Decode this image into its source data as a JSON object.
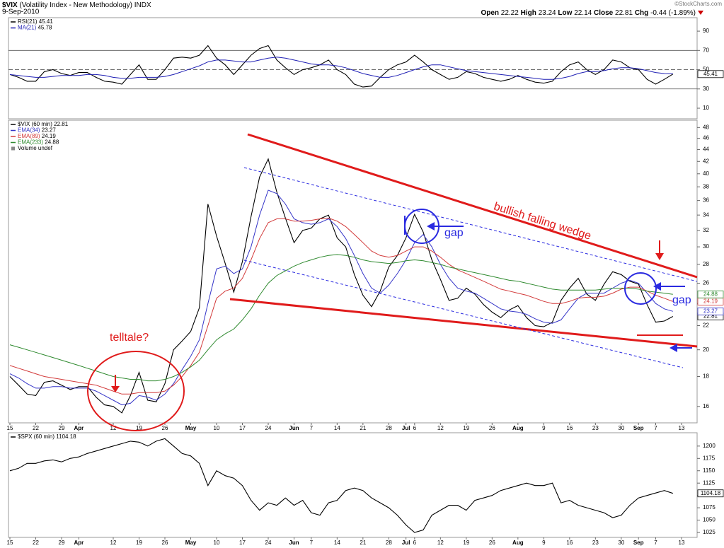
{
  "header": {
    "symbol": "$VIX",
    "name": "(Volatility Index - New Methodology)",
    "exchange": "INDX",
    "date": "9-Sep-2010",
    "quote": [
      {
        "name": "Open",
        "value": 22.22
      },
      {
        "name": "High",
        "value": 23.24
      },
      {
        "name": "Low",
        "value": 22.14
      },
      {
        "name": "Close",
        "value": 22.81
      },
      {
        "name": "Chg",
        "value": -0.44
      }
    ],
    "change_pct": "(-1.89%)",
    "copyright": "©StockCharts.com"
  },
  "chart_data": [
    {
      "type": "line",
      "ylim": [
        -1,
        104
      ],
      "yticks": [
        10,
        30,
        50,
        70,
        90
      ],
      "reference_lines": [
        {
          "value": 30
        },
        {
          "value": 70
        },
        {
          "value": 50,
          "dashed": true
        }
      ],
      "series": [
        {
          "name": "RSI(21)",
          "color": "#000000",
          "last_label": true,
          "values": [
            45,
            42,
            38,
            38,
            48,
            50,
            46,
            44,
            47,
            47,
            42,
            38,
            37,
            35,
            45,
            55,
            40,
            40,
            50,
            62,
            63,
            62,
            65,
            75,
            62,
            55,
            45,
            55,
            65,
            72,
            75,
            60,
            52,
            45,
            50,
            52,
            55,
            60,
            50,
            45,
            35,
            32,
            33,
            42,
            50,
            55,
            58,
            65,
            58,
            50,
            45,
            40,
            42,
            48,
            46,
            42,
            40,
            38,
            40,
            44,
            40,
            37,
            36,
            38,
            48,
            55,
            58,
            50,
            45,
            50,
            60,
            58,
            52,
            50,
            40,
            35,
            40,
            45.41,
            null
          ]
        },
        {
          "name": "MA(21)",
          "color": "#1f1fb4",
          "values": [
            45,
            44,
            43,
            42,
            42,
            43,
            44,
            44,
            44,
            45,
            45,
            44,
            42,
            41,
            41,
            42,
            42,
            42,
            43,
            45,
            48,
            51,
            54,
            58,
            60,
            60,
            59,
            58,
            58,
            60,
            62,
            63,
            62,
            60,
            58,
            56,
            55,
            55,
            54,
            52,
            49,
            46,
            44,
            42,
            42,
            44,
            47,
            50,
            53,
            55,
            55,
            53,
            51,
            49,
            48,
            47,
            46,
            45,
            44,
            43,
            42,
            41,
            40,
            40,
            41,
            43,
            46,
            48,
            48,
            49,
            51,
            52,
            52,
            51,
            49,
            47,
            46,
            45.78,
            null
          ]
        }
      ]
    },
    {
      "type": "line",
      "log_scale": true,
      "ylim": [
        15,
        49.4
      ],
      "yticks": [
        16,
        18,
        20,
        22,
        24,
        26,
        28,
        30,
        32,
        34,
        36,
        38,
        40,
        42,
        44,
        46,
        48
      ],
      "categories": [
        "15",
        null,
        null,
        "22",
        null,
        null,
        "29",
        null,
        "Apr",
        null,
        null,
        null,
        "12",
        null,
        null,
        "19",
        null,
        null,
        "26",
        null,
        null,
        "May",
        null,
        null,
        "10",
        null,
        null,
        "17",
        null,
        null,
        "24",
        null,
        null,
        "Jun",
        null,
        "7",
        null,
        null,
        "14",
        null,
        null,
        "21",
        null,
        null,
        "28",
        null,
        "Jul",
        "6",
        null,
        null,
        "12",
        null,
        null,
        "19",
        null,
        null,
        "26",
        null,
        null,
        "Aug",
        null,
        null,
        "9",
        null,
        null,
        "16",
        null,
        null,
        "23",
        null,
        null,
        "30",
        null,
        "Sep",
        null,
        "7",
        null,
        null,
        "13"
      ],
      "series": [
        {
          "name": "$VIX (60 min)",
          "color": "#000000",
          "last_label": true,
          "values": [
            18,
            17.4,
            16.8,
            16.7,
            17.6,
            17.7,
            17.4,
            17.1,
            17.3,
            17.3,
            16.6,
            16.1,
            16,
            15.6,
            16.7,
            18.3,
            16.4,
            16.3,
            17.5,
            20,
            20.7,
            21.5,
            23.6,
            35.5,
            31.3,
            28.1,
            25.1,
            28.3,
            33.8,
            39.5,
            42.4,
            37.2,
            33.6,
            30.5,
            32,
            32.3,
            33.5,
            34,
            31.1,
            30,
            26.9,
            24.8,
            23.7,
            25.2,
            27.7,
            29,
            31.1,
            34.1,
            31.8,
            28.5,
            26.4,
            24.3,
            24.5,
            25.5,
            24.9,
            23.9,
            23.2,
            22.7,
            23.4,
            23.8,
            22.7,
            22,
            21.9,
            22.3,
            24.3,
            25.5,
            26.5,
            24.9,
            24.3,
            25.9,
            27.2,
            26.9,
            26.2,
            25.9,
            23.9,
            22.3,
            22.4,
            22.81,
            null
          ]
        },
        {
          "name": "EMA(34)",
          "color": "#3535c8",
          "last_label": true,
          "values": [
            18.2,
            17.9,
            17.5,
            17.2,
            17.2,
            17.3,
            17.3,
            17.2,
            17.2,
            17.2,
            17,
            16.7,
            16.4,
            16.1,
            16.2,
            16.7,
            16.6,
            16.4,
            16.8,
            17.5,
            18.5,
            19.5,
            20.8,
            24,
            27.5,
            27.8,
            27,
            27.5,
            30,
            34,
            37.5,
            37,
            35.5,
            33.5,
            33,
            32.8,
            33,
            33.5,
            32.5,
            31,
            29,
            27,
            25.5,
            25,
            25.8,
            27,
            28.5,
            30.5,
            31.5,
            30,
            28,
            26.5,
            25.5,
            25.2,
            25,
            24.5,
            24,
            23.5,
            23.3,
            23.2,
            23,
            22.6,
            22.3,
            22.2,
            22.5,
            23.5,
            24.5,
            25,
            25,
            25,
            25.5,
            26,
            26.3,
            26,
            25,
            24,
            23.5,
            23.27,
            null
          ]
        },
        {
          "name": "EMA(89)",
          "color": "#d23a3a",
          "last_label": true,
          "values": [
            18.8,
            18.6,
            18.4,
            18.2,
            18,
            17.9,
            17.8,
            17.7,
            17.6,
            17.5,
            17.4,
            17.2,
            17,
            16.8,
            16.8,
            16.9,
            16.9,
            16.9,
            17,
            17.4,
            18,
            18.8,
            19.8,
            22,
            24.5,
            25.2,
            25.5,
            26.5,
            28.5,
            31,
            33,
            33.5,
            33.5,
            33.2,
            33.2,
            33.3,
            33.5,
            33.6,
            33.2,
            32.5,
            31.5,
            30.5,
            29.5,
            29,
            28.8,
            29,
            29.5,
            30,
            30,
            29.5,
            28.8,
            28,
            27.4,
            27,
            26.6,
            26.2,
            25.8,
            25.4,
            25.2,
            25,
            24.8,
            24.5,
            24.2,
            24,
            24,
            24.2,
            24.5,
            24.6,
            24.6,
            24.7,
            25,
            25.4,
            25.6,
            25.6,
            25.2,
            24.8,
            24.5,
            24.19,
            null
          ]
        },
        {
          "name": "EMA(233)",
          "color": "#2f8a2f",
          "last_label": true,
          "values": [
            20.4,
            20.2,
            20,
            19.8,
            19.6,
            19.4,
            19.2,
            19,
            18.8,
            18.6,
            18.4,
            18.2,
            18,
            17.9,
            17.8,
            17.8,
            17.7,
            17.7,
            17.8,
            18,
            18.3,
            18.7,
            19.2,
            20,
            20.8,
            21.3,
            21.7,
            22.5,
            23.5,
            24.8,
            26,
            26.8,
            27.3,
            27.8,
            28.2,
            28.5,
            28.8,
            29,
            29.1,
            29,
            28.8,
            28.5,
            28.3,
            28.2,
            28.1,
            28.2,
            28.4,
            28.5,
            28.4,
            28.2,
            28,
            27.7,
            27.5,
            27.3,
            27.1,
            26.9,
            26.7,
            26.5,
            26.3,
            26.2,
            26,
            25.8,
            25.6,
            25.4,
            25.3,
            25.3,
            25.3,
            25.3,
            25.3,
            25.4,
            25.5,
            25.5,
            25.5,
            25.4,
            25.2,
            25.1,
            25,
            24.88,
            null
          ]
        }
      ],
      "legend_note": "Volume undef",
      "annotations": [
        "telltale?",
        "bullish falling wedge",
        "gap",
        "gap"
      ]
    },
    {
      "type": "line",
      "ylim": [
        1015,
        1227
      ],
      "yticks": [
        1025,
        1050,
        1075,
        1100,
        1125,
        1150,
        1175,
        1200
      ],
      "categories": [
        "15",
        null,
        null,
        "22",
        null,
        null,
        "29",
        null,
        "Apr",
        null,
        null,
        null,
        "12",
        null,
        null,
        "19",
        null,
        null,
        "26",
        null,
        null,
        "May",
        null,
        null,
        "10",
        null,
        null,
        "17",
        null,
        null,
        "24",
        null,
        null,
        "Jun",
        null,
        "7",
        null,
        null,
        "14",
        null,
        null,
        "21",
        null,
        null,
        "28",
        null,
        "Jul",
        "6",
        null,
        null,
        "12",
        null,
        null,
        "19",
        null,
        null,
        "26",
        null,
        null,
        "Aug",
        null,
        null,
        "9",
        null,
        null,
        "16",
        null,
        null,
        "23",
        null,
        null,
        "30",
        null,
        "Sep",
        null,
        "7",
        null,
        null,
        "13"
      ],
      "series": [
        {
          "name": "$SPX (60 min)",
          "color": "#000000",
          "last_label": true,
          "values": [
            1150,
            1155,
            1165,
            1165,
            1170,
            1172,
            1168,
            1175,
            1178,
            1185,
            1190,
            1195,
            1200,
            1205,
            1210,
            1208,
            1200,
            1210,
            1215,
            1200,
            1185,
            1180,
            1165,
            1120,
            1150,
            1140,
            1135,
            1120,
            1090,
            1070,
            1085,
            1080,
            1095,
            1080,
            1090,
            1065,
            1060,
            1085,
            1090,
            1110,
            1115,
            1110,
            1095,
            1085,
            1075,
            1060,
            1040,
            1025,
            1030,
            1060,
            1070,
            1080,
            1080,
            1070,
            1090,
            1095,
            1100,
            1110,
            1115,
            1120,
            1125,
            1120,
            1120,
            1125,
            1085,
            1090,
            1080,
            1075,
            1070,
            1065,
            1055,
            1060,
            1080,
            1095,
            1100,
            1105,
            1110,
            1104.18,
            null
          ]
        }
      ]
    }
  ]
}
